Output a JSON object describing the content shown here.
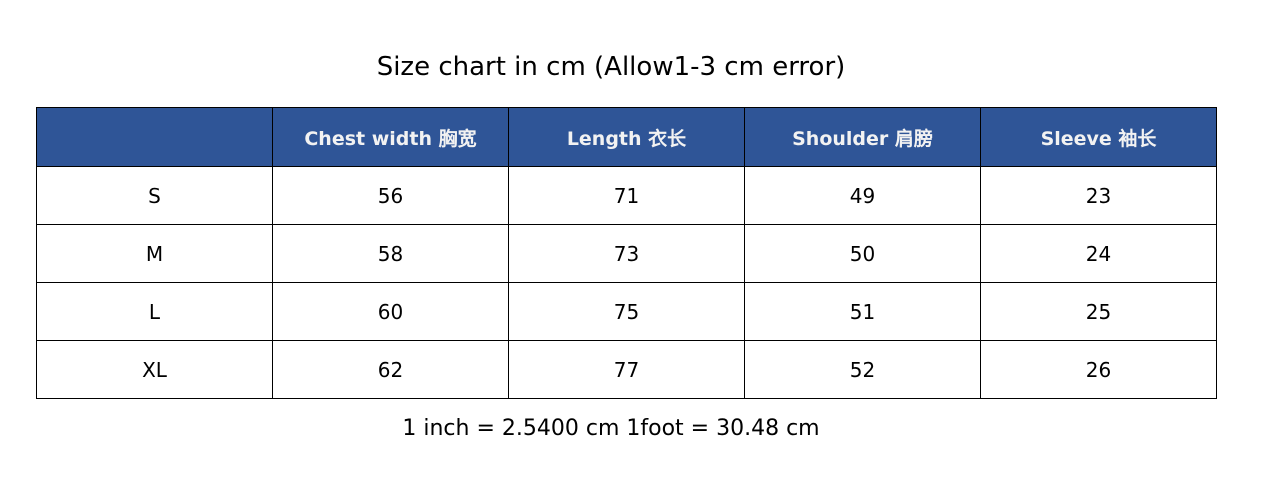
{
  "title": "Size chart in cm (Allow1-3 cm error)",
  "header_color": "#2f5597",
  "table": {
    "headers": [
      "",
      "Chest width  胸宽",
      "Length  衣长",
      "Shoulder  肩膀",
      "Sleeve  袖长"
    ],
    "rows": [
      [
        "S",
        "56",
        "71",
        "49",
        "23"
      ],
      [
        "M",
        "58",
        "73",
        "50",
        "24"
      ],
      [
        "L",
        "60",
        "75",
        "51",
        "25"
      ],
      [
        "XL",
        "62",
        "77",
        "52",
        "26"
      ]
    ]
  },
  "note": "1 inch = 2.5400 cm 1foot = 30.48 cm"
}
